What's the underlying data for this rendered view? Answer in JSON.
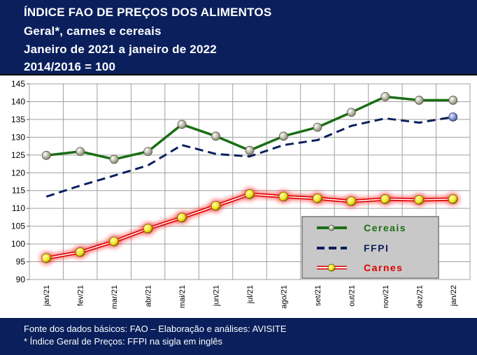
{
  "header": {
    "title": "ÍNDICE FAO DE PREÇOS DOS ALIMENTOS",
    "subtitle1": "Geral*, carnes e cereais",
    "subtitle2": "Janeiro de 2021 a janeiro de 2022",
    "subtitle3": "2014/2016 = 100"
  },
  "footer": {
    "source": "Fonte dos dados básicos: FAO – Elaboração e análises: AVISITE",
    "note": "* Índice Geral de Preços: FFPI na sigla em inglês"
  },
  "colors": {
    "header_bg": "#0a1f5c",
    "cereais": "#1a6e14",
    "ffpi": "#0a1f5c",
    "carnes": "#e00000",
    "marker_yellow": "#f2e21a"
  },
  "chart_data": {
    "type": "line",
    "categories": [
      "jan/21",
      "fev/21",
      "mar/21",
      "abr/21",
      "mai/21",
      "jun/21",
      "jul/21",
      "ago/21",
      "set/21",
      "out/21",
      "nov/21",
      "dez/21",
      "jan/22"
    ],
    "ylim": [
      90,
      145
    ],
    "yticks": [
      90,
      95,
      100,
      105,
      110,
      115,
      120,
      125,
      130,
      135,
      140,
      145
    ],
    "grid": true,
    "legend_position": "bottom-right",
    "series": [
      {
        "name": "Cereais",
        "values": [
          124.9,
          126.0,
          123.8,
          126.0,
          133.6,
          130.3,
          126.3,
          130.3,
          132.8,
          137.0,
          141.4,
          140.4,
          140.4
        ]
      },
      {
        "name": "FFPI",
        "values": [
          113.3,
          116.4,
          119.2,
          122.1,
          127.8,
          125.3,
          124.6,
          127.8,
          129.2,
          133.2,
          135.3,
          134.1,
          135.7
        ]
      },
      {
        "name": "Carnes",
        "values": [
          96.0,
          97.7,
          100.7,
          104.3,
          107.4,
          110.7,
          114.0,
          113.3,
          112.8,
          112.0,
          112.6,
          112.4,
          112.6
        ]
      }
    ]
  }
}
